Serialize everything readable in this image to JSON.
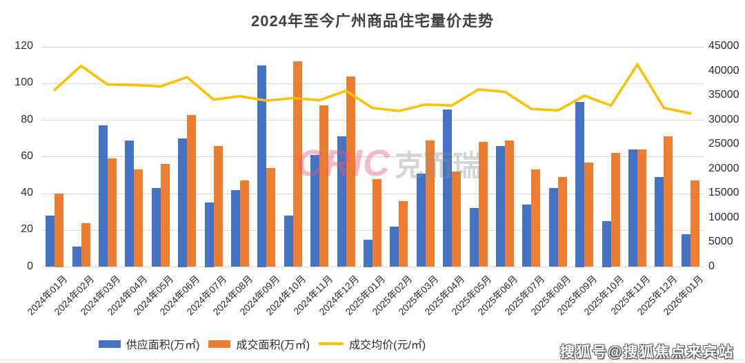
{
  "chart_data": {
    "type": "bar",
    "title": "2024年至今广州商品住宅量价走势",
    "categories": [
      "2024年01月",
      "2024年02月",
      "2024年03月",
      "2024年04月",
      "2024年05月",
      "2024年06月",
      "2024年07月",
      "2024年08月",
      "2024年09月",
      "2024年10月",
      "2024年11月",
      "2024年12月",
      "2025年01月",
      "2025年02月",
      "2025年03月",
      "2025年04月",
      "2025年05月",
      "2025年06月",
      "2025年07月",
      "2025年08月",
      "2025年09月",
      "2025年10月",
      "2025年11月",
      "2025年12月",
      "2026年01月"
    ],
    "series": [
      {
        "name": "供应面积(万㎡)",
        "type": "bar",
        "axis": "left",
        "color": "#4472C4",
        "values": [
          28,
          11,
          77,
          69,
          43,
          70,
          35,
          42,
          110,
          28,
          61,
          71,
          15,
          22,
          51,
          86,
          32,
          66,
          34,
          43,
          90,
          25,
          64,
          49,
          18
        ]
      },
      {
        "name": "成交面积(万㎡)",
        "type": "bar",
        "axis": "left",
        "color": "#ED7D31",
        "values": [
          40,
          24,
          59,
          53,
          56,
          83,
          66,
          47,
          54,
          112,
          88,
          104,
          48,
          36,
          69,
          52,
          68,
          69,
          53,
          49,
          57,
          62,
          64,
          71,
          47
        ]
      },
      {
        "name": "成交均价(元/㎡)",
        "type": "line",
        "axis": "right",
        "color": "#FFC000",
        "values": [
          36200,
          41100,
          37300,
          37200,
          36900,
          38800,
          34200,
          34900,
          34000,
          34500,
          34100,
          36000,
          32500,
          31900,
          33200,
          33000,
          36300,
          35800,
          32300,
          32000,
          35000,
          33000,
          41400,
          32500,
          31400
        ]
      }
    ],
    "left_axis": {
      "min": 0,
      "max": 120,
      "step": 20,
      "ticks": [
        0,
        20,
        40,
        60,
        80,
        100,
        120
      ]
    },
    "right_axis": {
      "min": 0,
      "max": 45000,
      "step": 5000,
      "ticks": [
        0,
        5000,
        10000,
        15000,
        20000,
        25000,
        30000,
        35000,
        40000,
        45000
      ]
    },
    "grid": true,
    "legend_position": "bottom",
    "gridline_color": "#d9d9d9"
  },
  "watermark": {
    "cric_latin": "CRIC",
    "cric_cjk": "克而瑞",
    "sohu": "搜狐号@搜狐焦点来宾站"
  }
}
